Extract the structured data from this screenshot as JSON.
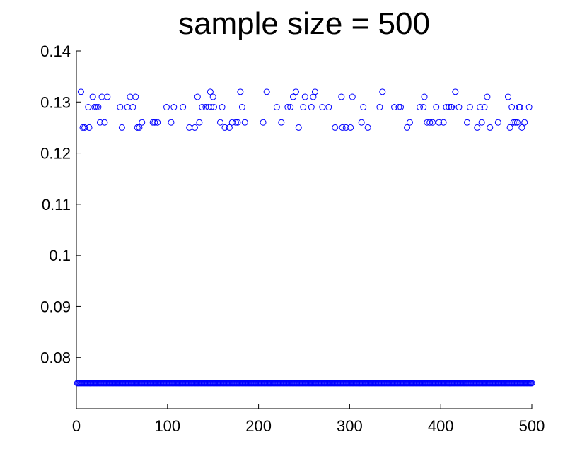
{
  "chart_data": {
    "type": "scatter",
    "title": "sample size = 500",
    "xlabel": "",
    "ylabel": "",
    "xlim": [
      0,
      500
    ],
    "ylim": [
      0.07,
      0.14
    ],
    "xticks": [
      0,
      100,
      200,
      300,
      400,
      500
    ],
    "xtick_labels": [
      "0",
      "100",
      "200",
      "300",
      "400",
      "500"
    ],
    "yticks": [
      0.08,
      0.09,
      0.1,
      0.11,
      0.12,
      0.13,
      0.14
    ],
    "ytick_labels": [
      "0.08",
      "0.09",
      "0.1",
      "0.11",
      "0.12",
      "0.13",
      "0.14"
    ],
    "grid": false,
    "marker": "circle-open",
    "marker_color": "#0000ff",
    "series": [
      {
        "points": [
          [
            5,
            0.132
          ],
          [
            7,
            0.125
          ],
          [
            9,
            0.125
          ],
          [
            13,
            0.129
          ],
          [
            14,
            0.125
          ],
          [
            18,
            0.131
          ],
          [
            20,
            0.129
          ],
          [
            22,
            0.129
          ],
          [
            24,
            0.129
          ],
          [
            26,
            0.126
          ],
          [
            28,
            0.131
          ],
          [
            31,
            0.126
          ],
          [
            34,
            0.131
          ],
          [
            48,
            0.129
          ],
          [
            50,
            0.125
          ],
          [
            56,
            0.129
          ],
          [
            59,
            0.131
          ],
          [
            62,
            0.129
          ],
          [
            65,
            0.131
          ],
          [
            67,
            0.125
          ],
          [
            69,
            0.125
          ],
          [
            72,
            0.126
          ],
          [
            84,
            0.126
          ],
          [
            86,
            0.126
          ],
          [
            89,
            0.126
          ],
          [
            99,
            0.129
          ],
          [
            104,
            0.126
          ],
          [
            107,
            0.129
          ],
          [
            117,
            0.129
          ],
          [
            124,
            0.125
          ],
          [
            130,
            0.125
          ],
          [
            133,
            0.131
          ],
          [
            135,
            0.126
          ],
          [
            138,
            0.129
          ],
          [
            142,
            0.129
          ],
          [
            145,
            0.129
          ],
          [
            147,
            0.132
          ],
          [
            148,
            0.129
          ],
          [
            150,
            0.131
          ],
          [
            151,
            0.129
          ],
          [
            158,
            0.126
          ],
          [
            160,
            0.129
          ],
          [
            163,
            0.125
          ],
          [
            168,
            0.125
          ],
          [
            171,
            0.126
          ],
          [
            175,
            0.126
          ],
          [
            177,
            0.126
          ],
          [
            180,
            0.132
          ],
          [
            182,
            0.129
          ],
          [
            185,
            0.126
          ],
          [
            205,
            0.126
          ],
          [
            209,
            0.132
          ],
          [
            220,
            0.129
          ],
          [
            225,
            0.126
          ],
          [
            232,
            0.129
          ],
          [
            235,
            0.129
          ],
          [
            238,
            0.131
          ],
          [
            241,
            0.132
          ],
          [
            244,
            0.125
          ],
          [
            249,
            0.129
          ],
          [
            251,
            0.131
          ],
          [
            258,
            0.129
          ],
          [
            260,
            0.131
          ],
          [
            262,
            0.132
          ],
          [
            270,
            0.129
          ],
          [
            277,
            0.129
          ],
          [
            284,
            0.125
          ],
          [
            291,
            0.131
          ],
          [
            292,
            0.125
          ],
          [
            296,
            0.125
          ],
          [
            301,
            0.125
          ],
          [
            303,
            0.131
          ],
          [
            313,
            0.126
          ],
          [
            315,
            0.129
          ],
          [
            320,
            0.125
          ],
          [
            333,
            0.129
          ],
          [
            336,
            0.132
          ],
          [
            349,
            0.129
          ],
          [
            354,
            0.129
          ],
          [
            356,
            0.129
          ],
          [
            363,
            0.125
          ],
          [
            366,
            0.126
          ],
          [
            377,
            0.129
          ],
          [
            381,
            0.129
          ],
          [
            382,
            0.131
          ],
          [
            385,
            0.126
          ],
          [
            388,
            0.126
          ],
          [
            391,
            0.126
          ],
          [
            395,
            0.129
          ],
          [
            398,
            0.126
          ],
          [
            403,
            0.126
          ],
          [
            406,
            0.129
          ],
          [
            409,
            0.129
          ],
          [
            411,
            0.129
          ],
          [
            412,
            0.129
          ],
          [
            416,
            0.132
          ],
          [
            420,
            0.129
          ],
          [
            429,
            0.126
          ],
          [
            432,
            0.129
          ],
          [
            440,
            0.125
          ],
          [
            443,
            0.129
          ],
          [
            445,
            0.126
          ],
          [
            448,
            0.129
          ],
          [
            451,
            0.131
          ],
          [
            454,
            0.125
          ],
          [
            463,
            0.126
          ],
          [
            474,
            0.131
          ],
          [
            476,
            0.125
          ],
          [
            478,
            0.129
          ],
          [
            480,
            0.126
          ],
          [
            482,
            0.126
          ],
          [
            484,
            0.126
          ],
          [
            486,
            0.129
          ],
          [
            487,
            0.129
          ],
          [
            489,
            0.125
          ],
          [
            492,
            0.126
          ],
          [
            497,
            0.129
          ]
        ],
        "baseline_y": 0.075,
        "baseline_x_range": [
          1,
          500
        ]
      }
    ]
  }
}
